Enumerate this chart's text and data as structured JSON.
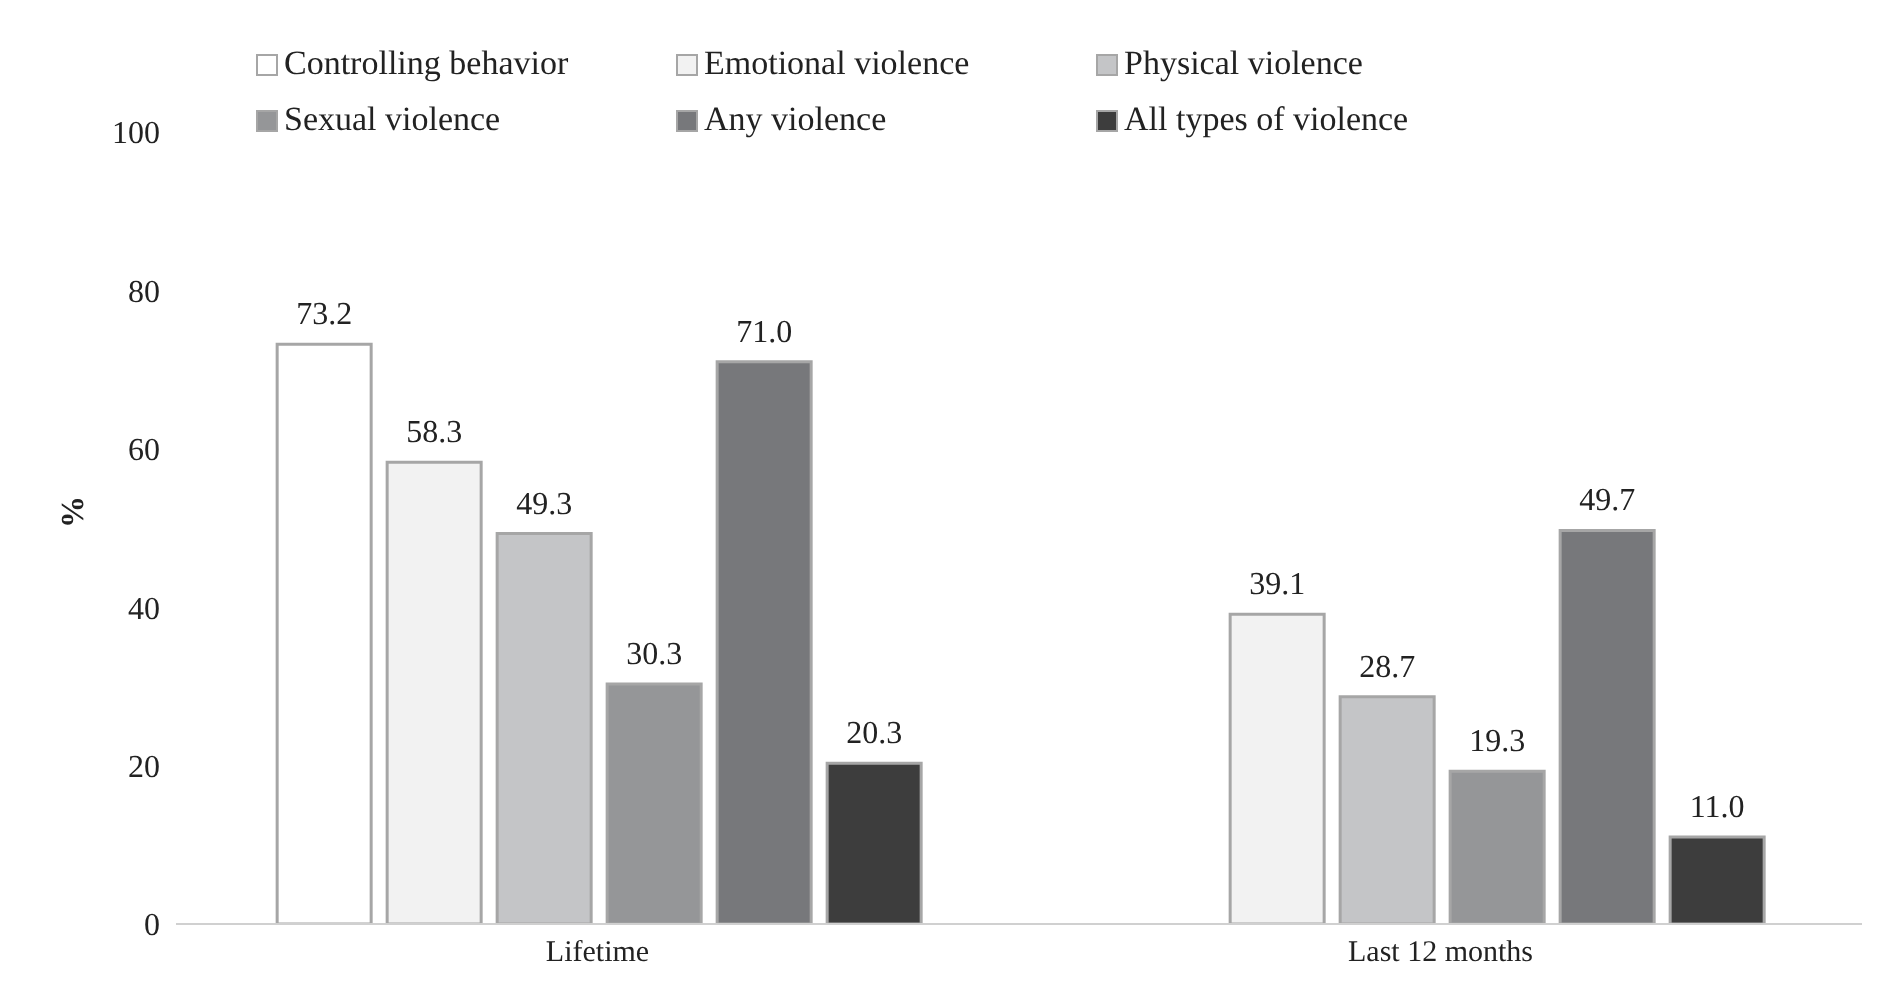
{
  "chart_data": {
    "type": "bar",
    "ylabel": "%",
    "categories": [
      "Lifetime",
      "Last 12 months"
    ],
    "series": [
      {
        "name": "Controlling behavior",
        "color": "#ffffff",
        "values": [
          73.2,
          null
        ],
        "value_labels": [
          "73.2",
          null
        ]
      },
      {
        "name": "Emotional violence",
        "color": "#f2f2f2",
        "values": [
          58.3,
          39.1
        ],
        "value_labels": [
          "58.3",
          "39.1"
        ]
      },
      {
        "name": "Physical violence",
        "color": "#c4c5c7",
        "values": [
          49.3,
          28.7
        ],
        "value_labels": [
          "49.3",
          "28.7"
        ]
      },
      {
        "name": "Sexual violence",
        "color": "#959698",
        "values": [
          30.3,
          19.3
        ],
        "value_labels": [
          "30.3",
          "19.3"
        ]
      },
      {
        "name": "Any violence",
        "color": "#77787b",
        "values": [
          71.0,
          49.7
        ],
        "value_labels": [
          "71.0",
          "49.7"
        ]
      },
      {
        "name": "All types of violence",
        "color": "#3d3d3d",
        "values": [
          20.3,
          11.0
        ],
        "value_labels": [
          "20.3",
          "11.0"
        ]
      }
    ],
    "ylim": [
      0,
      100
    ],
    "yticks": [
      0,
      20,
      40,
      60,
      80,
      100
    ],
    "grid": false,
    "legend": "top"
  }
}
